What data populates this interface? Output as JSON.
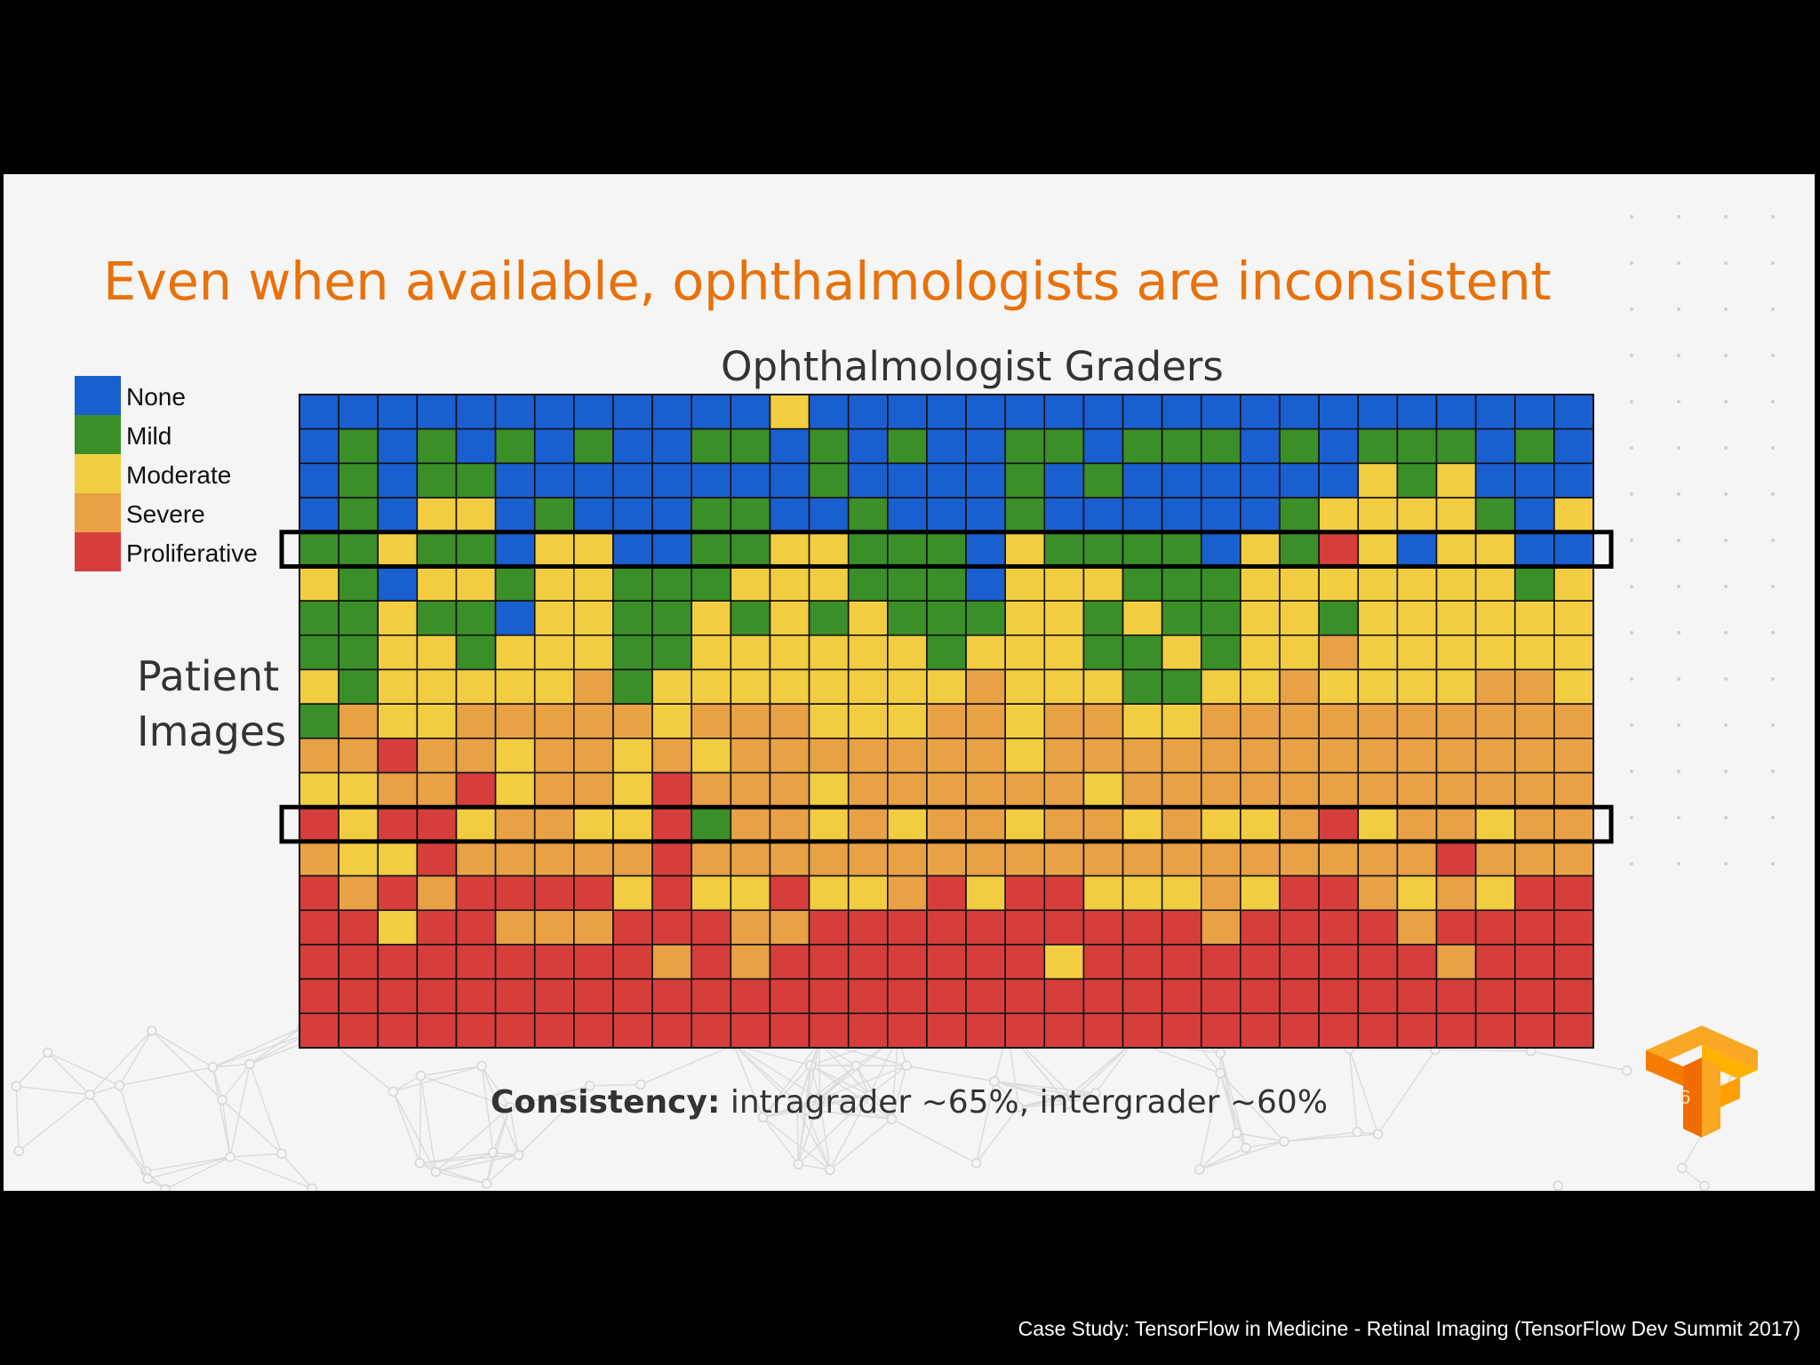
{
  "slide": {
    "title": "Even when available, ophthalmologists are inconsistent",
    "footer_bold": "Consistency:",
    "footer_rest": " intragrader ~65%, intergrader ~60%",
    "slide_number": "6",
    "logo_icon": "tensorflow-logo-icon"
  },
  "caption": "Case Study: TensorFlow in Medicine - Retinal Imaging (TensorFlow Dev Summit 2017)",
  "colors": {
    "background": "#f5f5f5",
    "title": "#e8710a",
    "grid_line": "#111111",
    "highlight_box": "#000000"
  },
  "chart_data": {
    "type": "heatmap",
    "title": "Ophthalmologist Graders",
    "xlabel": "",
    "ylabel": "Patient Images",
    "legend": [
      {
        "label": "None",
        "color": "#1a5fd0"
      },
      {
        "label": "Mild",
        "color": "#3a8f28"
      },
      {
        "label": "Moderate",
        "color": "#f3cd41"
      },
      {
        "label": "Severe",
        "color": "#e8a145"
      },
      {
        "label": "Proliferative",
        "color": "#d63e3c"
      }
    ],
    "value_key": {
      "0": "None",
      "1": "Mild",
      "2": "Moderate",
      "3": "Severe",
      "4": "Proliferative"
    },
    "n_graders": 33,
    "n_images": 19,
    "highlighted_rows": [
      4,
      12
    ],
    "cells": [
      [
        0,
        0,
        0,
        0,
        0,
        0,
        0,
        0,
        0,
        0,
        0,
        0,
        2,
        0,
        0,
        0,
        0,
        0,
        0,
        0,
        0,
        0,
        0,
        0,
        0,
        0,
        0,
        0,
        0,
        0,
        0,
        0,
        0
      ],
      [
        0,
        1,
        0,
        1,
        0,
        1,
        0,
        1,
        0,
        0,
        1,
        1,
        0,
        1,
        0,
        1,
        0,
        0,
        1,
        1,
        0,
        1,
        1,
        1,
        0,
        1,
        0,
        1,
        1,
        1,
        0,
        1,
        0
      ],
      [
        0,
        1,
        0,
        1,
        1,
        0,
        0,
        0,
        0,
        0,
        0,
        0,
        0,
        1,
        0,
        0,
        0,
        0,
        1,
        0,
        1,
        0,
        0,
        0,
        0,
        0,
        0,
        2,
        1,
        2,
        0,
        0,
        0
      ],
      [
        0,
        1,
        0,
        2,
        2,
        0,
        1,
        0,
        0,
        0,
        1,
        1,
        0,
        0,
        1,
        0,
        0,
        0,
        1,
        0,
        0,
        0,
        0,
        0,
        0,
        1,
        2,
        2,
        2,
        2,
        1,
        0,
        2
      ],
      [
        1,
        1,
        2,
        1,
        1,
        0,
        2,
        2,
        0,
        0,
        1,
        1,
        2,
        2,
        1,
        1,
        1,
        0,
        2,
        1,
        1,
        1,
        1,
        0,
        2,
        1,
        4,
        2,
        0,
        2,
        2,
        0,
        0
      ],
      [
        2,
        1,
        0,
        2,
        2,
        1,
        2,
        2,
        1,
        1,
        1,
        2,
        2,
        2,
        1,
        1,
        1,
        0,
        2,
        2,
        2,
        1,
        1,
        1,
        2,
        2,
        2,
        2,
        2,
        2,
        2,
        1,
        2
      ],
      [
        1,
        1,
        2,
        1,
        1,
        0,
        2,
        2,
        1,
        1,
        2,
        1,
        2,
        1,
        2,
        1,
        1,
        1,
        2,
        2,
        1,
        2,
        1,
        1,
        2,
        2,
        1,
        2,
        2,
        2,
        2,
        2,
        2
      ],
      [
        1,
        1,
        2,
        2,
        1,
        2,
        2,
        2,
        1,
        1,
        2,
        2,
        2,
        2,
        2,
        2,
        1,
        2,
        2,
        2,
        1,
        1,
        2,
        1,
        2,
        2,
        3,
        2,
        2,
        2,
        2,
        2,
        2
      ],
      [
        2,
        1,
        2,
        2,
        2,
        2,
        2,
        3,
        1,
        2,
        2,
        2,
        2,
        2,
        2,
        2,
        2,
        3,
        2,
        2,
        2,
        1,
        1,
        2,
        2,
        3,
        2,
        2,
        2,
        2,
        3,
        3,
        2
      ],
      [
        1,
        3,
        2,
        2,
        3,
        3,
        3,
        3,
        3,
        2,
        3,
        3,
        3,
        2,
        2,
        2,
        3,
        3,
        2,
        3,
        3,
        2,
        2,
        3,
        3,
        3,
        3,
        3,
        3,
        3,
        3,
        3,
        3
      ],
      [
        3,
        3,
        4,
        3,
        3,
        2,
        3,
        3,
        2,
        3,
        2,
        3,
        3,
        3,
        3,
        3,
        3,
        3,
        2,
        3,
        3,
        3,
        3,
        3,
        3,
        3,
        3,
        3,
        3,
        3,
        3,
        3,
        3
      ],
      [
        2,
        2,
        3,
        3,
        4,
        2,
        3,
        3,
        2,
        4,
        3,
        3,
        3,
        2,
        3,
        3,
        3,
        3,
        3,
        3,
        2,
        3,
        3,
        3,
        3,
        3,
        3,
        3,
        3,
        3,
        3,
        3,
        3
      ],
      [
        4,
        2,
        4,
        4,
        2,
        3,
        3,
        2,
        2,
        4,
        1,
        3,
        3,
        2,
        3,
        2,
        3,
        3,
        2,
        3,
        3,
        2,
        3,
        2,
        2,
        3,
        4,
        2,
        3,
        3,
        2,
        3,
        3
      ],
      [
        3,
        2,
        2,
        4,
        3,
        3,
        3,
        3,
        3,
        4,
        3,
        3,
        3,
        3,
        3,
        3,
        3,
        3,
        3,
        3,
        3,
        3,
        3,
        3,
        3,
        3,
        3,
        3,
        3,
        4,
        3,
        3,
        3
      ],
      [
        4,
        3,
        4,
        3,
        4,
        4,
        4,
        4,
        2,
        4,
        2,
        2,
        4,
        2,
        2,
        3,
        4,
        2,
        4,
        4,
        2,
        2,
        2,
        3,
        2,
        4,
        4,
        3,
        2,
        3,
        2,
        4,
        4
      ],
      [
        4,
        4,
        2,
        4,
        4,
        3,
        3,
        3,
        4,
        4,
        4,
        3,
        3,
        4,
        4,
        4,
        4,
        4,
        4,
        4,
        4,
        4,
        4,
        3,
        4,
        4,
        4,
        4,
        3,
        4,
        4,
        4,
        4
      ],
      [
        4,
        4,
        4,
        4,
        4,
        4,
        4,
        4,
        4,
        3,
        4,
        3,
        4,
        4,
        4,
        4,
        4,
        4,
        4,
        2,
        4,
        4,
        4,
        4,
        4,
        4,
        4,
        4,
        4,
        3,
        4,
        4,
        4
      ],
      [
        4,
        4,
        4,
        4,
        4,
        4,
        4,
        4,
        4,
        4,
        4,
        4,
        4,
        4,
        4,
        4,
        4,
        4,
        4,
        4,
        4,
        4,
        4,
        4,
        4,
        4,
        4,
        4,
        4,
        4,
        4,
        4,
        4
      ],
      [
        4,
        4,
        4,
        4,
        4,
        4,
        4,
        4,
        4,
        4,
        4,
        4,
        4,
        4,
        4,
        4,
        4,
        4,
        4,
        4,
        4,
        4,
        4,
        4,
        4,
        4,
        4,
        4,
        4,
        4,
        4,
        4,
        4
      ]
    ]
  }
}
